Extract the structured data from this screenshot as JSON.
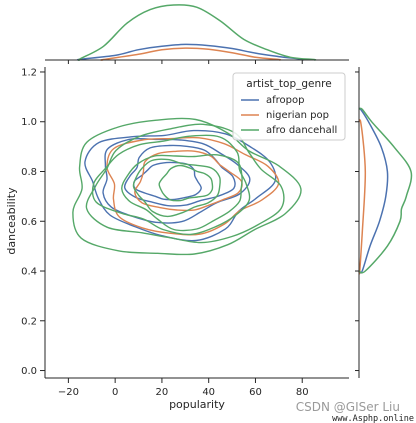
{
  "chart_data": {
    "type": "kde-joint",
    "xlabel": "popularity",
    "ylabel": "danceability",
    "xlim": [
      -30,
      100
    ],
    "ylim": [
      -0.03,
      1.22
    ],
    "xticks": [
      -20,
      0,
      20,
      40,
      60,
      80
    ],
    "yticks": [
      0.0,
      0.2,
      0.4,
      0.6,
      0.8,
      1.0,
      1.2
    ],
    "grid": false,
    "legend": {
      "title": "artist_top_genre",
      "placement": "top-right",
      "entries": [
        "afropop",
        "nigerian pop",
        "afro dancehall"
      ]
    },
    "series": [
      {
        "name": "afropop",
        "color": "#4c72b0",
        "center": [
          25,
          0.77
        ],
        "spread": [
          20,
          0.11
        ],
        "levels": 4,
        "x_marginal": {
          "x": [
            -15,
            0,
            10,
            20,
            30,
            40,
            50,
            60,
            70,
            80
          ],
          "density": [
            0.0003,
            0.002,
            0.0045,
            0.006,
            0.0068,
            0.0063,
            0.005,
            0.003,
            0.0015,
            0.0003
          ]
        },
        "y_marginal": {
          "y": [
            0.4,
            0.5,
            0.6,
            0.7,
            0.8,
            0.9,
            1.0,
            1.05
          ],
          "density": [
            0.2,
            0.7,
            1.3,
            1.7,
            1.8,
            1.4,
            0.6,
            0.1
          ]
        }
      },
      {
        "name": "nigerian pop",
        "color": "#dd8452",
        "center": [
          30,
          0.76
        ],
        "spread": [
          18,
          0.1
        ],
        "levels": 2,
        "x_marginal": {
          "x": [
            -5,
            10,
            20,
            30,
            40,
            50,
            60,
            70
          ],
          "density": [
            0.0002,
            0.0025,
            0.0045,
            0.0052,
            0.0047,
            0.0032,
            0.0012,
            0.0002
          ]
        },
        "y_marginal": {
          "y": [
            0.4,
            0.55,
            0.7,
            0.8,
            0.9,
            1.0
          ],
          "density": [
            0.05,
            0.2,
            0.35,
            0.4,
            0.3,
            0.1
          ]
        }
      },
      {
        "name": "afro dancehall",
        "color": "#55a868",
        "center": [
          28,
          0.74
        ],
        "spread": [
          24,
          0.14
        ],
        "levels": 6,
        "x_marginal": {
          "x": [
            -15,
            -5,
            5,
            15,
            25,
            35,
            45,
            55,
            65,
            75,
            85
          ],
          "density": [
            0.0005,
            0.006,
            0.016,
            0.022,
            0.024,
            0.023,
            0.017,
            0.009,
            0.0045,
            0.0012,
            0.0002
          ]
        },
        "y_marginal": {
          "y": [
            0.4,
            0.5,
            0.6,
            0.65,
            0.7,
            0.8,
            0.9,
            1.0,
            1.05
          ],
          "density": [
            0.4,
            1.8,
            2.6,
            2.7,
            3.0,
            3.3,
            2.2,
            0.8,
            0.2
          ]
        }
      }
    ]
  },
  "watermark": {
    "line1": "CSDN @GISer Liu",
    "line2": "www.Asphp.online"
  }
}
